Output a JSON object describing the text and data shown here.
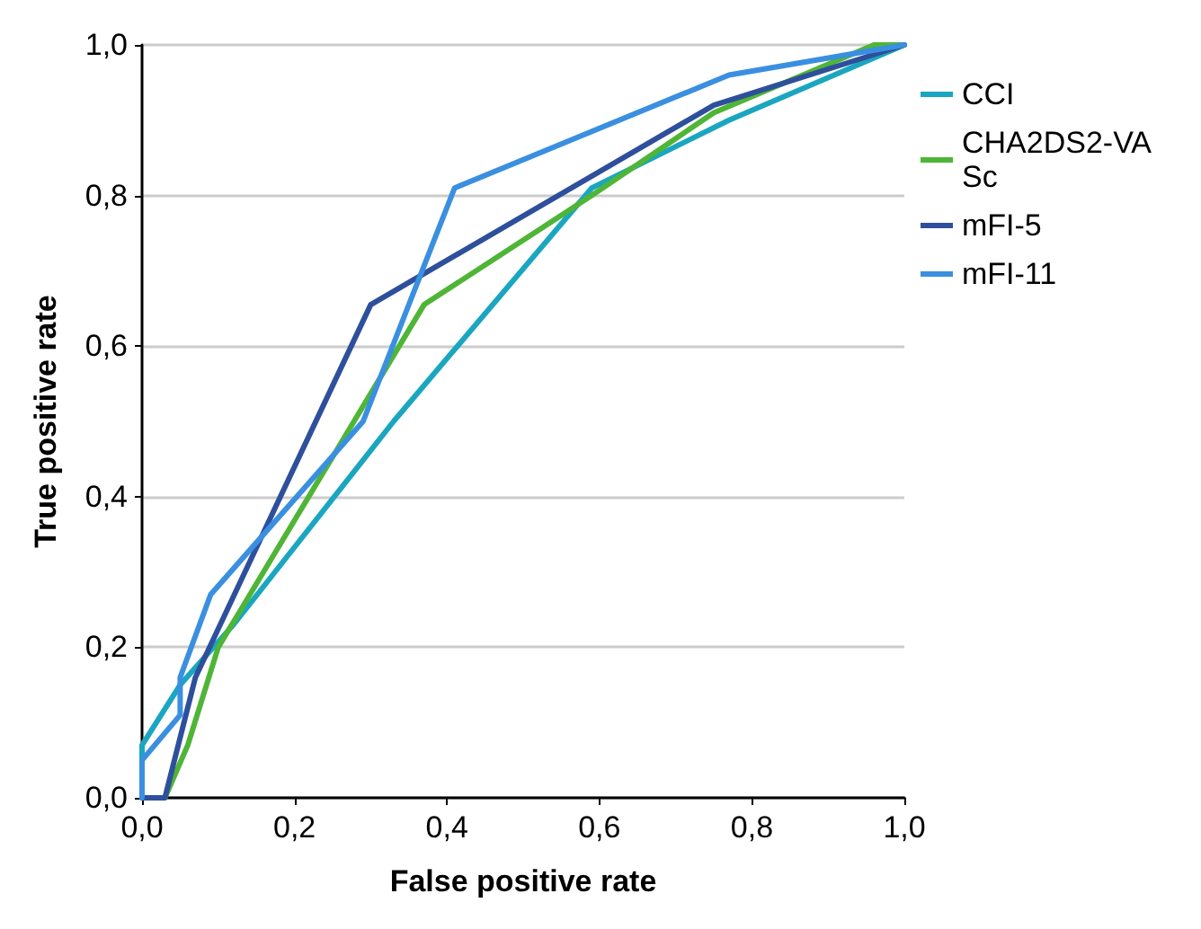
{
  "chart_data": {
    "type": "line",
    "xlabel": "False positive rate",
    "ylabel": "True positive rate",
    "xlim": [
      0,
      1
    ],
    "ylim": [
      0,
      1
    ],
    "xticks": [
      {
        "value": 0,
        "label": "0,0"
      },
      {
        "value": 0.2,
        "label": "0,2"
      },
      {
        "value": 0.4,
        "label": "0,4"
      },
      {
        "value": 0.6,
        "label": "0,6"
      },
      {
        "value": 0.8,
        "label": "0,8"
      },
      {
        "value": 1,
        "label": "1,0"
      }
    ],
    "yticks": [
      {
        "value": 0,
        "label": "0,0"
      },
      {
        "value": 0.2,
        "label": "0,2"
      },
      {
        "value": 0.4,
        "label": "0,4"
      },
      {
        "value": 0.6,
        "label": "0,6"
      },
      {
        "value": 0.8,
        "label": "0,8"
      },
      {
        "value": 1,
        "label": "1,0"
      }
    ],
    "grid": "y",
    "legend": "right",
    "marker": "none",
    "line_style": "solid",
    "series": [
      {
        "name": "CCI",
        "color": "#1aa6c0",
        "x": [
          0,
          0,
          0.05,
          0.12,
          0.33,
          0.59,
          0.77,
          1
        ],
        "values": [
          0,
          0.07,
          0.15,
          0.23,
          0.5,
          0.81,
          0.9,
          1
        ]
      },
      {
        "name": "CHA2DS2-VASc",
        "color": "#4fb536",
        "x": [
          0,
          0.03,
          0.06,
          0.1,
          0.37,
          0.59,
          0.75,
          0.96,
          1
        ],
        "values": [
          0,
          0,
          0.07,
          0.2,
          0.655,
          0.8,
          0.91,
          1,
          1
        ]
      },
      {
        "name": "mFI-5",
        "color": "#2e4f9c",
        "x": [
          0,
          0.03,
          0.07,
          0.3,
          0.75,
          1
        ],
        "values": [
          0,
          0,
          0.16,
          0.655,
          0.92,
          1
        ]
      },
      {
        "name": "mFI-11",
        "color": "#3a8fe0",
        "x": [
          0,
          0,
          0.05,
          0.05,
          0.09,
          0.29,
          0.41,
          0.77,
          1
        ],
        "values": [
          0,
          0.05,
          0.11,
          0.16,
          0.27,
          0.5,
          0.81,
          0.96,
          1
        ]
      }
    ]
  }
}
